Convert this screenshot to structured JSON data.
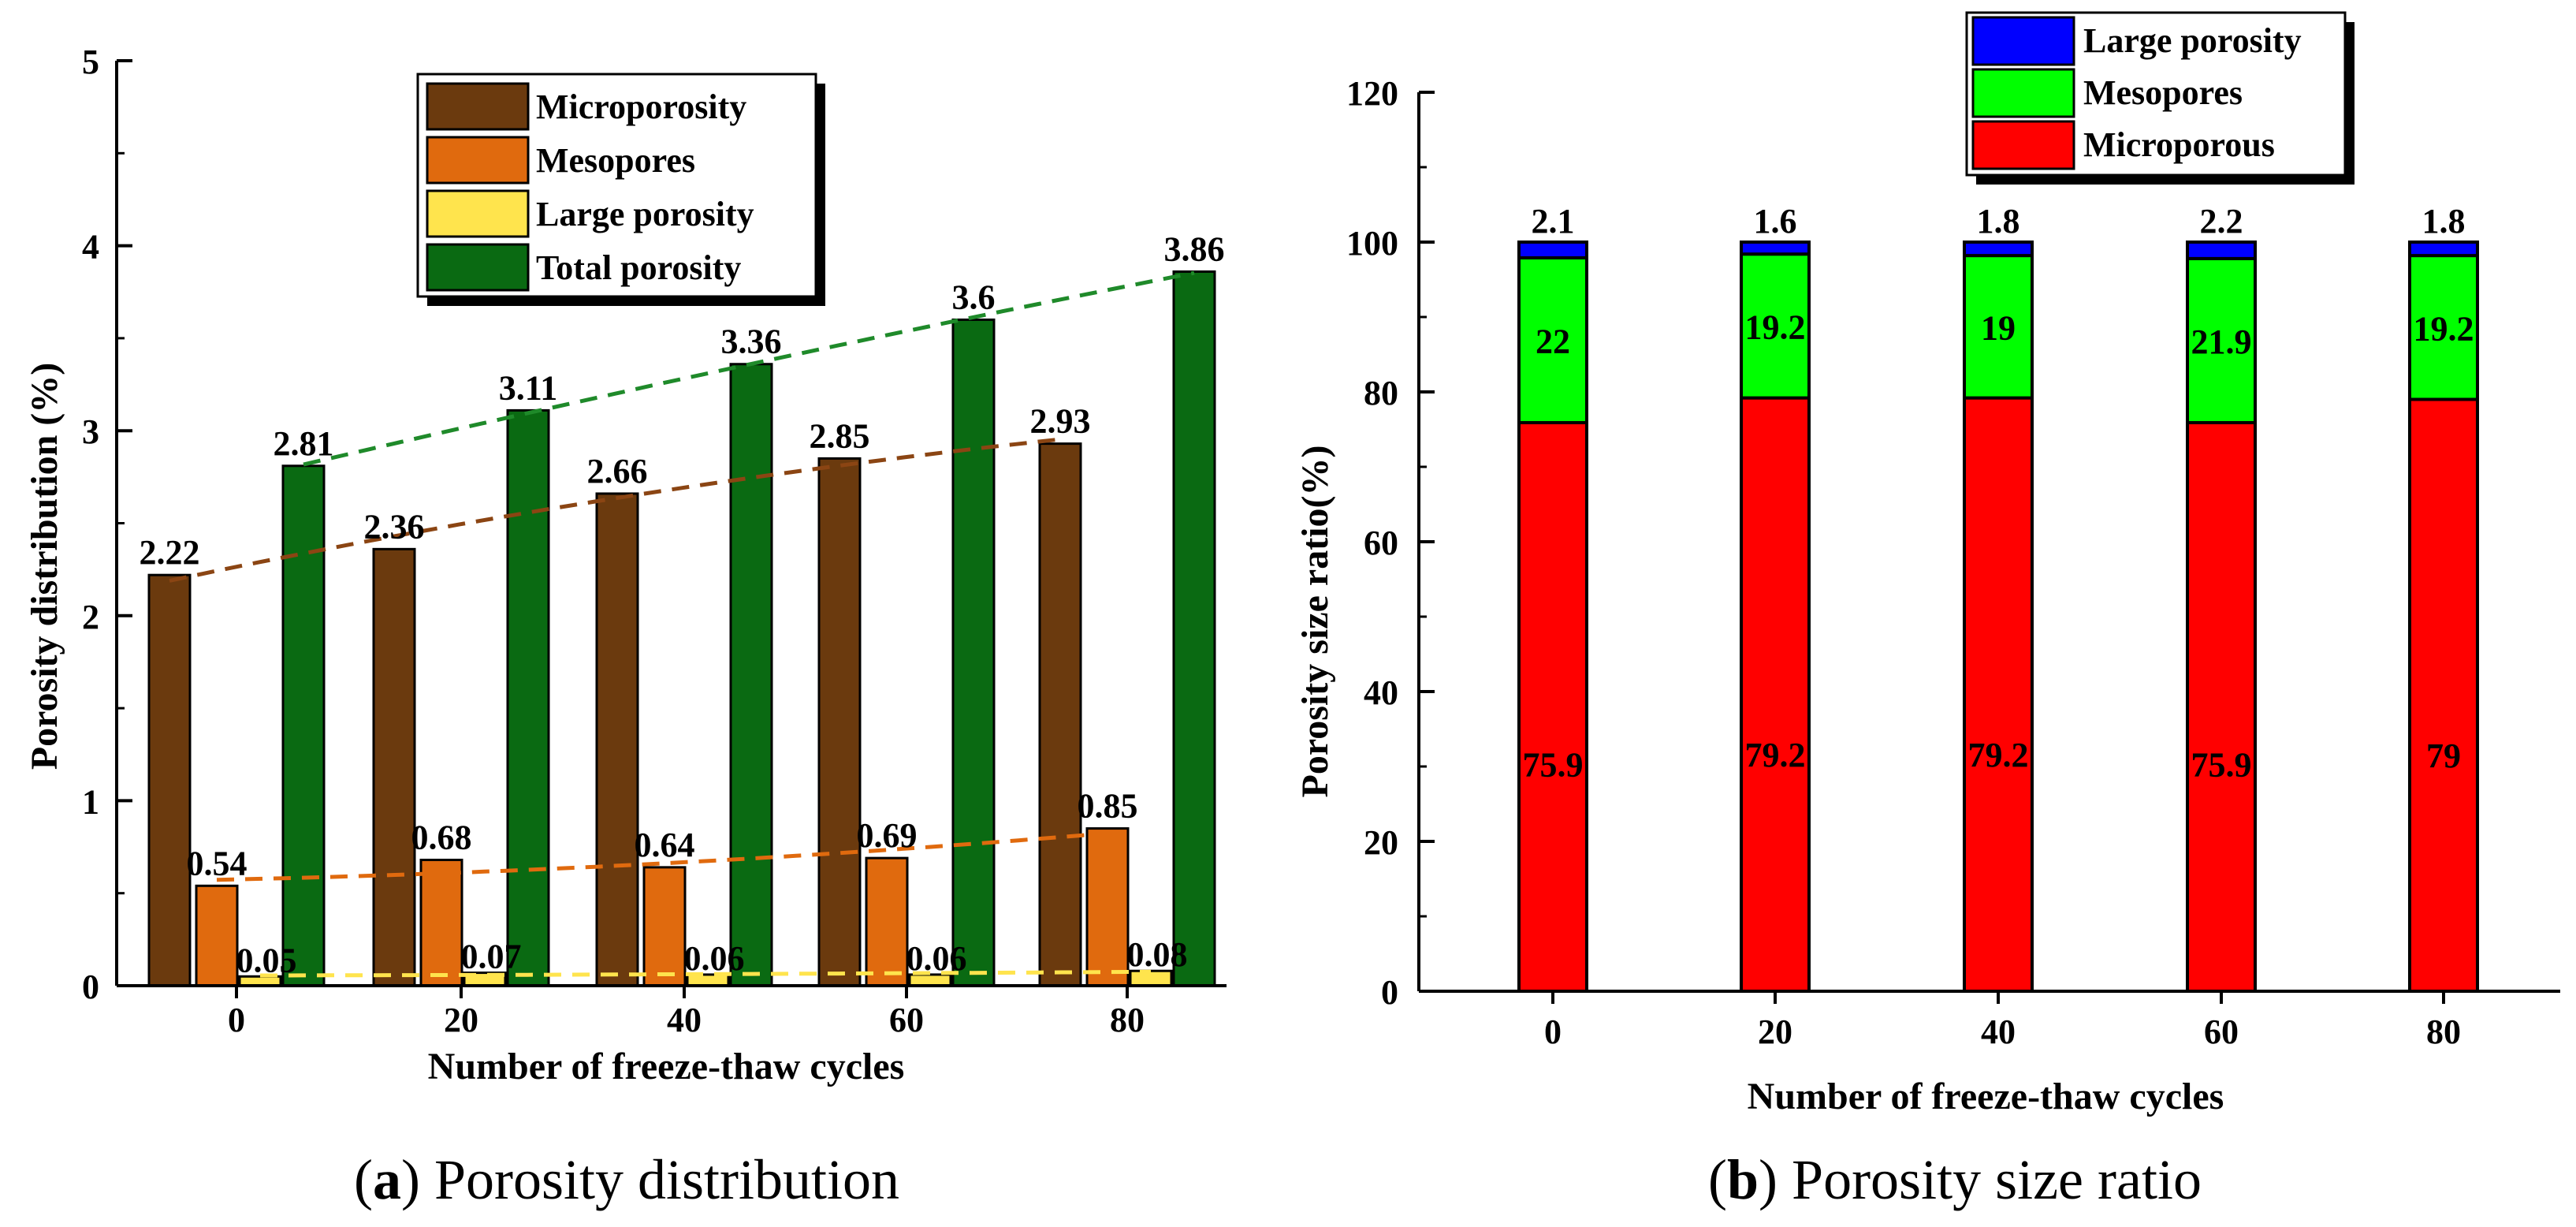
{
  "chart_data": [
    {
      "type": "bar",
      "categories": [
        "0",
        "20",
        "40",
        "60",
        "80"
      ],
      "series": [
        {
          "name": "Microporosity",
          "values": [
            2.22,
            2.36,
            2.66,
            2.85,
            2.93
          ],
          "labels": [
            "2.22",
            "2.36",
            "2.66",
            "2.85",
            "2.93"
          ],
          "color": "#6B3A0E",
          "trend_color": "#8B4513"
        },
        {
          "name": "Mesopores",
          "values": [
            0.54,
            0.68,
            0.64,
            0.69,
            0.85
          ],
          "labels": [
            "0.54",
            "0.68",
            "0.64",
            "0.69",
            "0.85"
          ],
          "color": "#E06A0E",
          "trend_color": "#E06A0E"
        },
        {
          "name": "Large porosity",
          "values": [
            0.05,
            0.07,
            0.06,
            0.06,
            0.08
          ],
          "labels": [
            "0.05",
            "0.07",
            "0.06",
            "0.06",
            "0.08"
          ],
          "color": "#FFE44D",
          "trend_color": "#FFE44D"
        },
        {
          "name": "Total porosity",
          "values": [
            2.81,
            3.11,
            3.36,
            3.6,
            3.86
          ],
          "labels": [
            "2.81",
            "3.11",
            "3.36",
            "3.6",
            "3.86"
          ],
          "color": "#0A6A12",
          "trend_color": "#1F8A2A"
        }
      ],
      "title": "",
      "xlabel": "Number of freeze-thaw cycles",
      "ylabel": "Porosity distribution (%)",
      "ylim": [
        0,
        5
      ],
      "yticks": [
        "0",
        "1",
        "2",
        "3",
        "4",
        "5"
      ],
      "trendlines": "dashed",
      "legend": "top-right",
      "caption_letter": "a",
      "caption_text": " Porosity distribution"
    },
    {
      "type": "bar",
      "stacked": true,
      "categories": [
        "0",
        "20",
        "40",
        "60",
        "80"
      ],
      "series": [
        {
          "name": "Microporous",
          "values": [
            75.9,
            79.2,
            79.2,
            75.9,
            79
          ],
          "labels": [
            "75.9",
            "79.2",
            "79.2",
            "75.9",
            "79"
          ],
          "color": "#FF0000"
        },
        {
          "name": "Mesopores",
          "values": [
            22,
            19.2,
            19,
            21.9,
            19.2
          ],
          "labels": [
            "22",
            "19.2",
            "19",
            "21.9",
            "19.2"
          ],
          "color": "#00FF00"
        },
        {
          "name": "Large porosity",
          "values": [
            2.1,
            1.6,
            1.8,
            2.2,
            1.8
          ],
          "labels": [
            "2.1",
            "1.6",
            "1.8",
            "2.2",
            "1.8"
          ],
          "color": "#0000FF"
        }
      ],
      "legend_order": [
        "Large porosity",
        "Mesopores",
        "Microporous"
      ],
      "title": "",
      "xlabel": "Number of freeze-thaw cycles",
      "ylabel": "Porosity size ratio(%)",
      "ylim": [
        0,
        120
      ],
      "yticks": [
        "0",
        "20",
        "40",
        "60",
        "80",
        "100",
        "120"
      ],
      "legend": "top",
      "caption_letter": "b",
      "caption_text": " Porosity size ratio"
    }
  ]
}
